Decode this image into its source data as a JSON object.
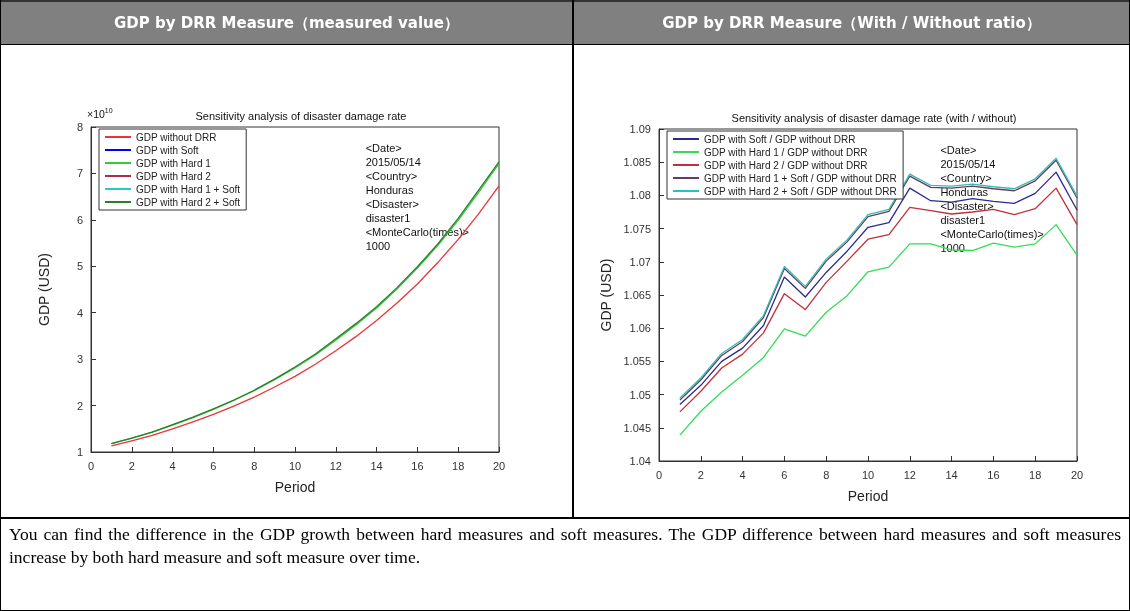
{
  "chart_data": [
    {
      "type": "line",
      "title": "GDP by DRR Measure（measured value）",
      "subtitle": "Sensitivity analysis of disaster damage rate",
      "xlabel": "Period",
      "ylabel": "GDP (USD)",
      "x": [
        1,
        2,
        3,
        4,
        5,
        6,
        7,
        8,
        9,
        10,
        11,
        12,
        13,
        14,
        15,
        16,
        17,
        18,
        19,
        20
      ],
      "xlim": [
        0,
        20
      ],
      "xticks": [
        0,
        2,
        4,
        6,
        8,
        10,
        12,
        14,
        16,
        18,
        20
      ],
      "ylim": [
        1,
        8
      ],
      "yticks": [
        1,
        2,
        3,
        4,
        5,
        6,
        7,
        8
      ],
      "series": [
        {
          "name": "GDP without DRR",
          "color": "#e8343a",
          "values": [
            1.13,
            1.24,
            1.36,
            1.5,
            1.65,
            1.81,
            1.99,
            2.18,
            2.4,
            2.63,
            2.89,
            3.18,
            3.49,
            3.83,
            4.21,
            4.62,
            5.08,
            5.58,
            6.13,
            6.73
          ]
        },
        {
          "name": "GDP with Soft",
          "color": "#0000ff",
          "values": [
            null,
            null,
            null,
            null,
            null,
            null,
            null,
            null,
            null,
            null,
            null,
            null,
            null,
            null,
            null,
            null,
            null,
            null,
            null,
            null
          ]
        },
        {
          "name": "GDP with Hard 1",
          "color": "#33cc33",
          "values": [
            1.18,
            1.3,
            1.43,
            1.58,
            1.74,
            1.92,
            2.11,
            2.32,
            2.56,
            2.81,
            3.09,
            3.41,
            3.74,
            4.1,
            4.51,
            4.96,
            5.45,
            5.99,
            6.59,
            7.21
          ]
        },
        {
          "name": "GDP with Hard 2",
          "color": "#a3304f",
          "values": [
            null,
            null,
            null,
            null,
            null,
            null,
            null,
            null,
            null,
            null,
            null,
            null,
            null,
            null,
            null,
            null,
            null,
            null,
            null,
            null
          ]
        },
        {
          "name": "GDP with Hard 1 + Soft",
          "color": "#22d0c0",
          "values": [
            null,
            null,
            null,
            null,
            null,
            null,
            null,
            null,
            null,
            null,
            null,
            null,
            null,
            null,
            null,
            null,
            null,
            null,
            null,
            null
          ]
        },
        {
          "name": "GDP with Hard 2 + Soft",
          "color": "#2e7d32",
          "values": [
            1.18,
            1.3,
            1.43,
            1.59,
            1.75,
            1.93,
            2.12,
            2.33,
            2.57,
            2.83,
            3.11,
            3.44,
            3.77,
            4.13,
            4.54,
            4.99,
            5.48,
            6.03,
            6.64,
            7.25
          ]
        }
      ],
      "annotations": [
        "×10$^{10}$",
        "<Date>\n2015/05/14\n<Country>\nHonduras\n<Disaster>\ndisaster1\n<MonteCarlo(times)>\n1000"
      ],
      "legend": "top left",
      "marker": "none",
      "line_style": "solid",
      "grid": false
    },
    {
      "type": "line",
      "title": "GDP by DRR Measure（With / Without ratio）",
      "subtitle": "Sensitivity analysis of disaster damage rate (with / without)",
      "xlabel": "Period",
      "ylabel": "GDP (USD)",
      "x": [
        1,
        2,
        3,
        4,
        5,
        6,
        7,
        8,
        9,
        10,
        11,
        12,
        13,
        14,
        15,
        16,
        17,
        18,
        19,
        20
      ],
      "xlim": [
        0,
        20
      ],
      "xticks": [
        0,
        2,
        4,
        6,
        8,
        10,
        12,
        14,
        16,
        18,
        20
      ],
      "ylim": [
        1.04,
        1.09
      ],
      "yticks": [
        1.04,
        1.045,
        1.05,
        1.055,
        1.06,
        1.065,
        1.07,
        1.075,
        1.08,
        1.085,
        1.09
      ],
      "series": [
        {
          "name": "GDP with Soft / GDP without DRR",
          "color": "#2b2b8c",
          "values": [
            1.0485,
            1.0514,
            1.055,
            1.057,
            1.0604,
            1.0677,
            1.0647,
            1.0684,
            1.0716,
            1.0752,
            1.0759,
            1.0811,
            1.0792,
            1.079,
            1.0795,
            1.0791,
            1.0788,
            1.0803,
            1.0835,
            1.0778
          ]
        },
        {
          "name": "GDP with Hard 1 / GDP without DRR",
          "color": "#33dd55",
          "values": [
            1.0439,
            1.0475,
            1.0504,
            1.0529,
            1.0556,
            1.0599,
            1.0588,
            1.0624,
            1.0649,
            1.0685,
            1.0692,
            1.0727,
            1.0727,
            1.0718,
            1.0717,
            1.0728,
            1.0722,
            1.0727,
            1.0756,
            1.071
          ]
        },
        {
          "name": "GDP with Hard 2 / GDP without DRR",
          "color": "#c0303a",
          "values": [
            1.0474,
            1.0505,
            1.054,
            1.0561,
            1.0593,
            1.0652,
            1.0628,
            1.0669,
            1.0701,
            1.0734,
            1.0741,
            1.0782,
            1.0777,
            1.0772,
            1.0775,
            1.0779,
            1.0771,
            1.078,
            1.0811,
            1.0756
          ]
        },
        {
          "name": "GDP with Hard 1 + Soft / GDP without DRR",
          "color": "#6b3b5b",
          "values": [
            1.0492,
            1.0522,
            1.0559,
            1.058,
            1.0616,
            1.069,
            1.066,
            1.0701,
            1.073,
            1.0768,
            1.0776,
            1.0829,
            1.0812,
            1.0811,
            1.0814,
            1.081,
            1.0807,
            1.0822,
            1.0853,
            1.0796
          ]
        },
        {
          "name": "GDP with Hard 2 + Soft / GDP without DRR",
          "color": "#2cc0b8",
          "values": [
            1.0495,
            1.0525,
            1.0562,
            1.0583,
            1.0619,
            1.0693,
            1.0663,
            1.0704,
            1.0733,
            1.0771,
            1.0779,
            1.0832,
            1.0815,
            1.0814,
            1.0817,
            1.0813,
            1.081,
            1.0825,
            1.0856,
            1.0799
          ]
        }
      ],
      "annotations": [
        "<Date>\n2015/05/14\n<Country>\nHonduras\n<Disaster>\ndisaster1\n<MonteCarlo(times)>\n1000"
      ],
      "legend": "top left",
      "marker": "none",
      "line_style": "solid",
      "grid": false
    },
    {
      "type": "other",
      "annotations": [
        "You can find the difference in the GDP growth between hard measures and soft measures. The GDP difference between hard measures and soft measures increase by both hard measure and soft measure over time."
      ]
    }
  ]
}
